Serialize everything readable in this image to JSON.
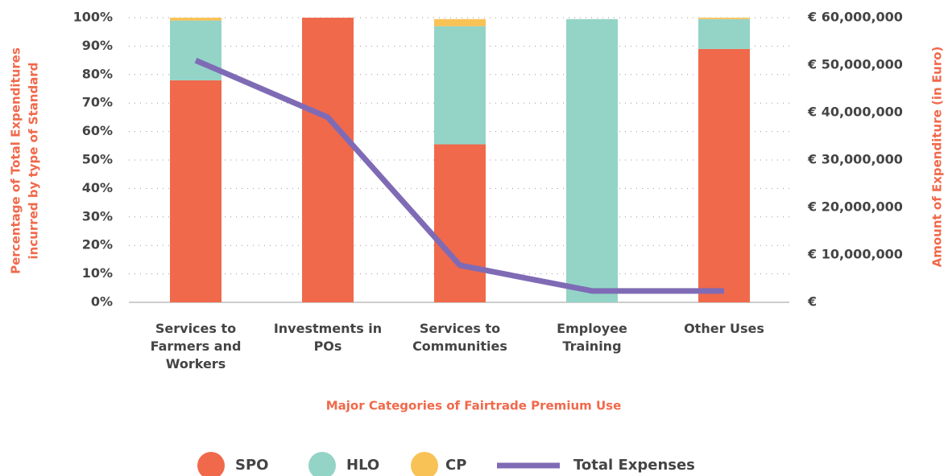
{
  "chart_data": {
    "type": "stacked_bar_line",
    "ylabel": [
      "Percentage of Total Expenditures",
      "incurred by type of Standard"
    ],
    "y2label": "Amount of Expenditure (in Euro)",
    "xlabel": "Major Categories of Fairtrade Premium Use",
    "categories": [
      "Services to Farmers and Workers",
      "Investments in POs",
      "Services to Communities",
      "Employee Training",
      "Other Uses"
    ],
    "ylim": [
      0,
      100
    ],
    "yticks": [
      {
        "value": 0,
        "label": "0%"
      },
      {
        "value": 10,
        "label": "10%"
      },
      {
        "value": 20,
        "label": "20%"
      },
      {
        "value": 30,
        "label": "30%"
      },
      {
        "value": 40,
        "label": "40%"
      },
      {
        "value": 50,
        "label": "50%"
      },
      {
        "value": 60,
        "label": "60%"
      },
      {
        "value": 70,
        "label": "70%"
      },
      {
        "value": 80,
        "label": "80%"
      },
      {
        "value": 90,
        "label": "90%"
      },
      {
        "value": 100,
        "label": "100%"
      }
    ],
    "y2lim": [
      0,
      60000000
    ],
    "y2ticks": [
      {
        "value": 0,
        "label": "€"
      },
      {
        "value": 10000000,
        "label": "€ 10,000,000"
      },
      {
        "value": 20000000,
        "label": "€ 20,000,000"
      },
      {
        "value": 30000000,
        "label": "€ 30,000,000"
      },
      {
        "value": 40000000,
        "label": "€ 40,000,000"
      },
      {
        "value": 50000000,
        "label": "€ 50,000,000"
      },
      {
        "value": 60000000,
        "label": "€ 60,000,000"
      }
    ],
    "grid": true,
    "series": [
      {
        "name": "SPO",
        "color": "#f0694b",
        "values": [
          78,
          100,
          55.5,
          0,
          89
        ]
      },
      {
        "name": "HLO",
        "color": "#93d4c7",
        "values": [
          21,
          0,
          41.5,
          99.5,
          10.5
        ]
      },
      {
        "name": "CP",
        "color": "#f9c257",
        "values": [
          1,
          0,
          2.5,
          0,
          0.5
        ]
      },
      {
        "name": "Total Expenses",
        "color": "#7f6bb5",
        "axis": "y2",
        "values": [
          51000000,
          39000000,
          7800000,
          2400000,
          2400000
        ]
      }
    ]
  }
}
